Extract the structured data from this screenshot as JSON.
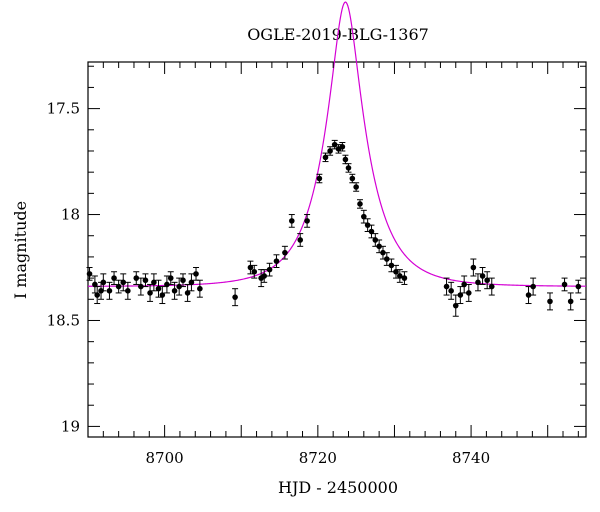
{
  "chart_data": {
    "type": "scatter",
    "title": "OGLE-2019-BLG-1367",
    "xlabel": "HJD - 2450000",
    "ylabel": "I magnitude",
    "xlim": [
      8690,
      8755
    ],
    "ylim": [
      19.05,
      17.28
    ],
    "y_inverted": true,
    "x_ticks": [
      8700,
      8720,
      8740
    ],
    "x_tick_labels": [
      "8700",
      "8720",
      "8740"
    ],
    "y_ticks": [
      17.5,
      18,
      18.5,
      19
    ],
    "y_tick_labels": [
      "17.5",
      "18",
      "18.5",
      "19"
    ],
    "grid": false,
    "colors": {
      "points": "#000000",
      "model": "#d400d4"
    },
    "series": [
      {
        "kind": "points",
        "x": [
          8690.2,
          8690.9,
          8691.2,
          8691.7,
          8692.0,
          8692.8,
          8693.4,
          8694.0,
          8694.6,
          8695.2,
          8696.3,
          8696.9,
          8697.5,
          8698.1,
          8698.6,
          8699.2,
          8699.7,
          8700.3,
          8700.8,
          8701.3,
          8701.9,
          8702.4,
          8703.0,
          8703.5,
          8704.1,
          8704.6,
          8709.2,
          8711.2,
          8711.7,
          8712.6,
          8713.0,
          8713.7,
          8714.6,
          8715.7,
          8716.6,
          8717.7,
          8718.6,
          8720.2,
          8721.0,
          8721.6,
          8722.2,
          8722.7,
          8723.2,
          8723.6,
          8724.0,
          8724.5,
          8725.0,
          8725.5,
          8726.0,
          8726.5,
          8727.0,
          8727.5,
          8728.0,
          8728.5,
          8729.0,
          8729.6,
          8730.2,
          8730.7,
          8731.3,
          8736.8,
          8737.4,
          8738.0,
          8738.6,
          8739.1,
          8739.7,
          8740.3,
          8740.9,
          8741.5,
          8742.1,
          8742.7,
          8747.5,
          8748.1,
          8750.3,
          8752.2,
          8753.0,
          8754.0
        ],
        "y": [
          18.28,
          18.33,
          18.38,
          18.36,
          18.32,
          18.36,
          18.3,
          18.34,
          18.32,
          18.36,
          18.3,
          18.34,
          18.31,
          18.37,
          18.32,
          18.35,
          18.38,
          18.33,
          18.3,
          18.36,
          18.34,
          18.31,
          18.37,
          18.32,
          18.28,
          18.35,
          18.39,
          18.25,
          18.27,
          18.3,
          18.29,
          18.26,
          18.22,
          18.18,
          18.03,
          18.12,
          18.03,
          17.83,
          17.73,
          17.7,
          17.67,
          17.69,
          17.68,
          17.74,
          17.78,
          17.83,
          17.87,
          17.95,
          18.01,
          18.05,
          18.08,
          18.12,
          18.15,
          18.18,
          18.21,
          18.24,
          18.27,
          18.29,
          18.3,
          18.34,
          18.36,
          18.43,
          18.38,
          18.33,
          18.37,
          18.25,
          18.32,
          18.29,
          18.31,
          18.34,
          18.38,
          18.34,
          18.41,
          18.33,
          18.41,
          18.34
        ],
        "err": [
          0.03,
          0.04,
          0.04,
          0.04,
          0.04,
          0.04,
          0.03,
          0.03,
          0.04,
          0.04,
          0.03,
          0.04,
          0.03,
          0.04,
          0.04,
          0.04,
          0.04,
          0.04,
          0.03,
          0.04,
          0.04,
          0.03,
          0.04,
          0.04,
          0.03,
          0.04,
          0.04,
          0.03,
          0.03,
          0.04,
          0.03,
          0.03,
          0.03,
          0.03,
          0.03,
          0.03,
          0.03,
          0.02,
          0.02,
          0.02,
          0.02,
          0.02,
          0.02,
          0.02,
          0.02,
          0.02,
          0.02,
          0.02,
          0.03,
          0.03,
          0.03,
          0.03,
          0.03,
          0.03,
          0.03,
          0.03,
          0.03,
          0.03,
          0.03,
          0.04,
          0.04,
          0.05,
          0.04,
          0.04,
          0.04,
          0.04,
          0.04,
          0.04,
          0.04,
          0.04,
          0.04,
          0.04,
          0.04,
          0.03,
          0.04,
          0.03
        ]
      },
      {
        "kind": "model",
        "t0": 8723.6,
        "u0": 0.3,
        "tE": 5.5,
        "I_base": 18.34
      }
    ]
  }
}
